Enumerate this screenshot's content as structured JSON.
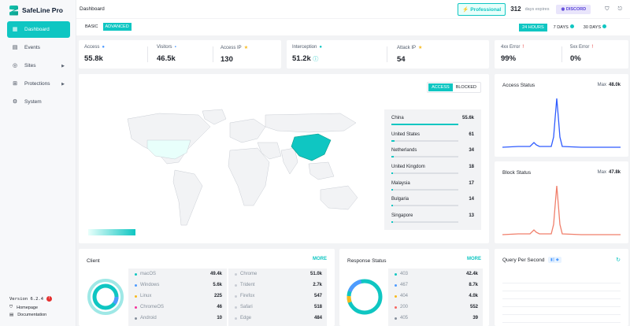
{
  "app": {
    "name": "SafeLine Pro",
    "page_title": "Dashboard"
  },
  "sidebar": {
    "items": [
      {
        "label": "Dashboard",
        "icon": "dashboard-icon",
        "active": true
      },
      {
        "label": "Events",
        "icon": "events-icon"
      },
      {
        "label": "Sites",
        "icon": "sites-icon",
        "has_arrow": true
      },
      {
        "label": "Protections",
        "icon": "protections-icon",
        "has_arrow": true
      },
      {
        "label": "System",
        "icon": "system-icon"
      }
    ],
    "version": "Version 6.2.4",
    "version_badge": "!",
    "links": [
      {
        "label": "Homepage",
        "icon": "shield-icon"
      },
      {
        "label": "Documentation",
        "icon": "doc-icon"
      }
    ]
  },
  "topbar": {
    "edition": "Professional",
    "days": "312",
    "days_suffix": "days expires",
    "discord": "DISCORD"
  },
  "modes": [
    "BASIC",
    "ADVANCED"
  ],
  "ranges": [
    "24 HOURS",
    "7 DAYS",
    "30 DAYS"
  ],
  "stats": [
    {
      "label": "Access",
      "value": "55.8k"
    },
    {
      "label": "Visitors",
      "value": "46.5k"
    },
    {
      "label": "Access IP",
      "value": "130"
    },
    {
      "label": "Interception",
      "value": "51.2k"
    },
    {
      "label": "Attack IP",
      "value": "54"
    },
    {
      "label": "4xx Error",
      "value": "99%"
    },
    {
      "label": "5xx Error",
      "value": "0%"
    }
  ],
  "map": {
    "toggle": [
      "ACCESS",
      "BLOCKED"
    ],
    "countries": [
      {
        "name": "China",
        "value": "55.6k",
        "ratio": 1.0
      },
      {
        "name": "United States",
        "value": "61",
        "ratio": 0.05
      },
      {
        "name": "Netherlands",
        "value": "34",
        "ratio": 0.03
      },
      {
        "name": "United Kingdom",
        "value": "18",
        "ratio": 0.02
      },
      {
        "name": "Malaysia",
        "value": "17",
        "ratio": 0.02
      },
      {
        "name": "Bulgaria",
        "value": "14",
        "ratio": 0.02
      },
      {
        "name": "Singapore",
        "value": "13",
        "ratio": 0.02
      }
    ]
  },
  "access_status": {
    "title": "Access Status",
    "max_label": "Max",
    "max": "48.0k"
  },
  "block_status": {
    "title": "Block Status",
    "max_label": "Max",
    "max": "47.8k"
  },
  "client": {
    "title": "Client",
    "more": "MORE",
    "left": [
      {
        "name": "macOS",
        "value": "49.4k",
        "color": "#0fc6c2"
      },
      {
        "name": "Windows",
        "value": "5.6k",
        "color": "#4e9bff"
      },
      {
        "name": "Linux",
        "value": "225",
        "color": "#f7ba1e"
      },
      {
        "name": "ChromeOS",
        "value": "46",
        "color": "#f5319d"
      },
      {
        "name": "Android",
        "value": "10",
        "color": "#86909c"
      }
    ],
    "right": [
      {
        "name": "Chrome",
        "value": "51.0k",
        "color": "#c9cdd4"
      },
      {
        "name": "Trident",
        "value": "2.7k",
        "color": "#c9cdd4"
      },
      {
        "name": "Firefox",
        "value": "547",
        "color": "#c9cdd4"
      },
      {
        "name": "Safari",
        "value": "518",
        "color": "#c9cdd4"
      },
      {
        "name": "Edge",
        "value": "484",
        "color": "#c9cdd4"
      }
    ]
  },
  "response_status": {
    "title": "Response Status",
    "more": "MORE",
    "rows": [
      {
        "code": "403",
        "value": "42.4k",
        "color": "#0fc6c2"
      },
      {
        "code": "467",
        "value": "8.7k",
        "color": "#4e9bff"
      },
      {
        "code": "404",
        "value": "4.0k",
        "color": "#f7ba1e"
      },
      {
        "code": "200",
        "value": "552",
        "color": "#f76560"
      },
      {
        "code": "405",
        "value": "39",
        "color": "#86909c"
      }
    ]
  },
  "qps": {
    "title": "Query Per Second"
  },
  "colors": {
    "accent": "#0fc6c2",
    "access_line": "#2e5bff",
    "block_line": "#f07f6b"
  }
}
